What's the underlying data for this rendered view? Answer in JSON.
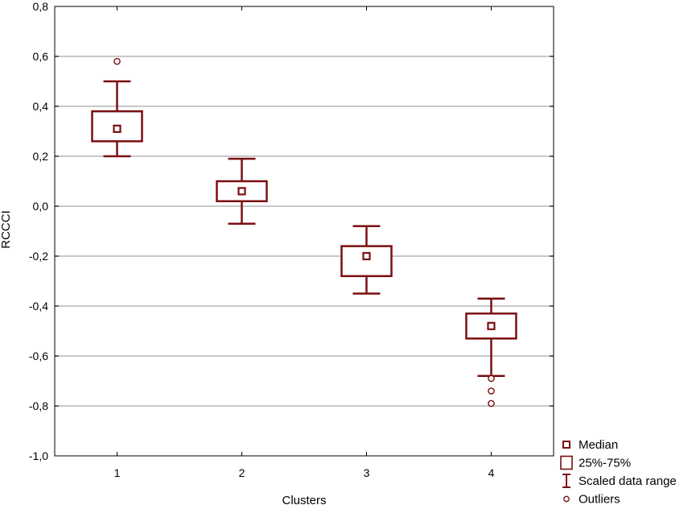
{
  "chart_data": {
    "type": "box",
    "xlabel": "Clusters",
    "ylabel": "RCCCI",
    "categories": [
      "1",
      "2",
      "3",
      "4"
    ],
    "ylim": [
      -1.0,
      0.8
    ],
    "yticks": [
      -1.0,
      -0.8,
      -0.6,
      -0.4,
      -0.2,
      0.0,
      0.2,
      0.4,
      0.6,
      0.8
    ],
    "ytick_labels": [
      "-1,0",
      "-0,8",
      "-0,6",
      "-0,4",
      "-0,2",
      "0,0",
      "0,2",
      "0,4",
      "0,6",
      "0,8"
    ],
    "grid": "horizontal",
    "legend_position": "bottom-right outside",
    "boxes": [
      {
        "category": "1",
        "median": 0.31,
        "q1": 0.26,
        "q3": 0.38,
        "whisker_low": 0.2,
        "whisker_high": 0.5,
        "outliers": [
          0.58
        ]
      },
      {
        "category": "2",
        "median": 0.06,
        "q1": 0.02,
        "q3": 0.1,
        "whisker_low": -0.07,
        "whisker_high": 0.19,
        "outliers": []
      },
      {
        "category": "3",
        "median": -0.2,
        "q1": -0.28,
        "q3": -0.16,
        "whisker_low": -0.35,
        "whisker_high": -0.08,
        "outliers": []
      },
      {
        "category": "4",
        "median": -0.48,
        "q1": -0.53,
        "q3": -0.43,
        "whisker_low": -0.68,
        "whisker_high": -0.37,
        "outliers": [
          -0.69,
          -0.74,
          -0.79
        ]
      }
    ],
    "legend": [
      {
        "key": "median",
        "label": "Median"
      },
      {
        "key": "box",
        "label": "25%-75%"
      },
      {
        "key": "range",
        "label": "Scaled data range"
      },
      {
        "key": "outlier",
        "label": "Outliers"
      }
    ],
    "colors": {
      "box": "#7a0f12",
      "grid": "#c8c8c8",
      "axis": "#000000"
    }
  }
}
